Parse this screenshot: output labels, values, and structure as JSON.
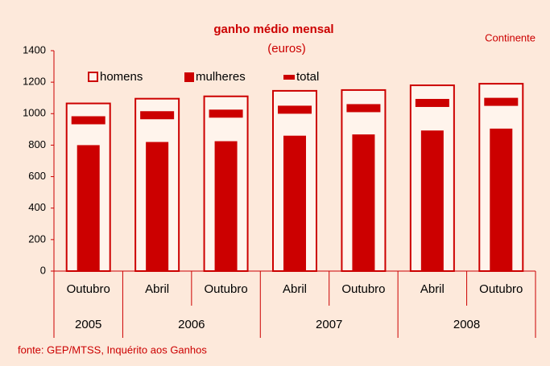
{
  "chart_data": {
    "type": "bar",
    "title": "ganho médio mensal",
    "subtitle": "(euros)",
    "annotation": "Continente",
    "source": "fonte: GEP/MTSS, Inquérito aos Ganhos",
    "categories": [
      "Outubro",
      "Abril",
      "Outubro",
      "Abril",
      "Outubro",
      "Abril",
      "Outubro"
    ],
    "years": [
      "2005",
      "2006",
      null,
      "2007",
      null,
      "2008",
      null
    ],
    "series": [
      {
        "name": "homens",
        "color": "#cc0000",
        "values": [
          1065,
          1095,
          1110,
          1145,
          1150,
          1180,
          1190
        ]
      },
      {
        "name": "mulheres",
        "color": "#cc0000",
        "values": [
          800,
          820,
          825,
          860,
          868,
          893,
          905
        ]
      },
      {
        "name": "total",
        "color": "#cc0000",
        "values": [
          958,
          990,
          1000,
          1025,
          1035,
          1068,
          1075
        ]
      }
    ],
    "ylim": [
      0,
      1400
    ],
    "yticks": [
      0,
      200,
      400,
      600,
      800,
      1000,
      1200,
      1400
    ],
    "grid": false
  }
}
